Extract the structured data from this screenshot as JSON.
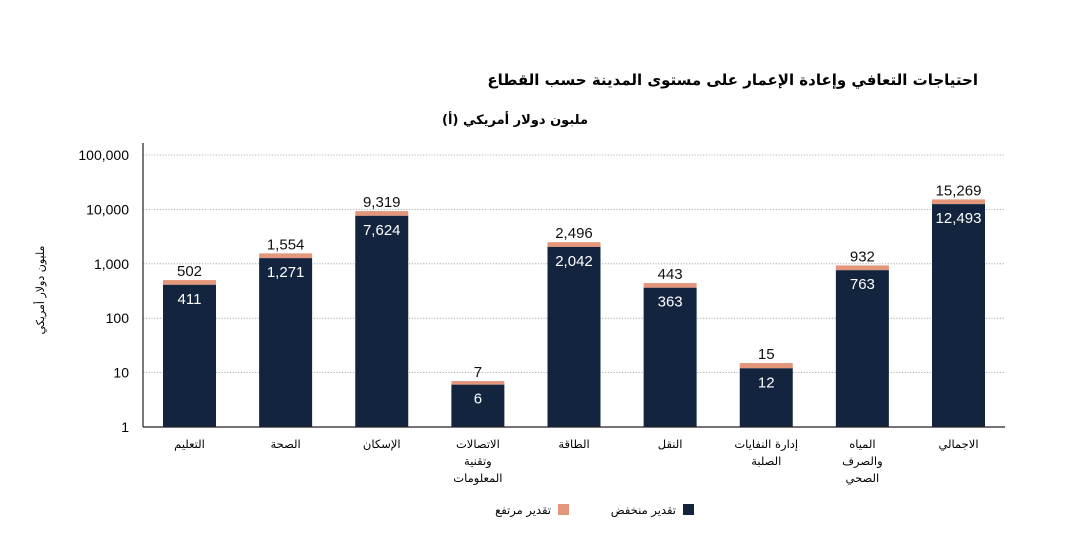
{
  "chart_data": {
    "type": "bar",
    "title": "احتياجات التعافي وإعادة الإعمار على مستوى المدينة حسب القطاع",
    "subtitle": "(أ) ملبون دولار أمريكي",
    "ylabel": "مليون دولار أمريكي",
    "xlabel": "",
    "yscale": "log",
    "ylim": [
      1,
      100000
    ],
    "yticks": [
      "1",
      "10",
      "100",
      "1,000",
      "10,000",
      "100,000"
    ],
    "grid": true,
    "stacked": true,
    "legend_position": "bottom-center",
    "categories": [
      [
        "التعليم"
      ],
      [
        "الصحة"
      ],
      [
        "الإسكان"
      ],
      [
        "الاتصالات",
        "وتقنية",
        "المعلومات"
      ],
      [
        "الطاقة"
      ],
      [
        "النقل"
      ],
      [
        "إدارة النفايات",
        "الصلبة"
      ],
      [
        "المياه",
        "والصرف",
        "الصحي"
      ],
      [
        "الاجمالي"
      ]
    ],
    "series": [
      {
        "name": "تقدير منخفض",
        "color": "#13243f",
        "values": [
          411,
          1271,
          7624,
          6,
          2042,
          363,
          12,
          763,
          12493
        ],
        "labels": [
          "411",
          "1,271",
          "7,624",
          "6",
          "2,042",
          "363",
          "12",
          "763",
          "12,493"
        ]
      },
      {
        "name": "تقدير مرتفع",
        "color": "#e3967a",
        "values": [
          502,
          1554,
          9319,
          7,
          2496,
          443,
          15,
          932,
          15269
        ],
        "labels": [
          "502",
          "1,554",
          "9,319",
          "7",
          "2,496",
          "443",
          "15",
          "932",
          "15,269"
        ]
      }
    ]
  }
}
